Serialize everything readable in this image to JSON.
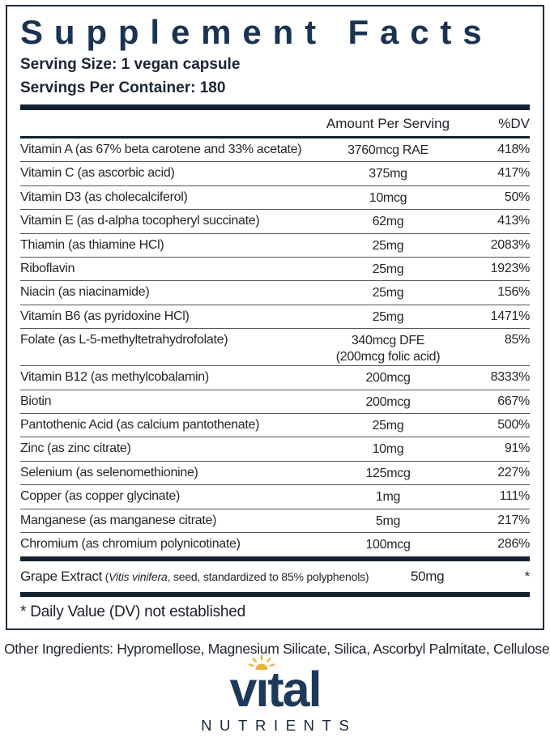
{
  "panel": {
    "title": "Supplement Facts",
    "serving_size": "Serving Size: 1 vegan capsule",
    "servings_per_container": "Servings Per Container: 180",
    "columns": {
      "amount": "Amount Per Serving",
      "dv": "%DV"
    },
    "rows": [
      {
        "name": "Vitamin A (as 67% beta carotene and 33% acetate)",
        "amount": "3760mcg RAE",
        "dv": "418%"
      },
      {
        "name": "Vitamin C (as ascorbic acid)",
        "amount": "375mg",
        "dv": "417%"
      },
      {
        "name": "Vitamin D3 (as cholecalciferol)",
        "amount": "10mcg",
        "dv": "50%"
      },
      {
        "name": "Vitamin E (as d-alpha tocopheryl succinate)",
        "amount": "62mg",
        "dv": "413%"
      },
      {
        "name": "Thiamin (as thiamine HCl)",
        "amount": "25mg",
        "dv": "2083%"
      },
      {
        "name": "Riboflavin",
        "amount": "25mg",
        "dv": "1923%"
      },
      {
        "name": "Niacin (as niacinamide)",
        "amount": "25mg",
        "dv": "156%"
      },
      {
        "name": "Vitamin B6 (as pyridoxine HCl)",
        "amount": "25mg",
        "dv": "1471%"
      },
      {
        "name": "Folate (as L-5-methyltetrahydrofolate)",
        "amount": "340mcg DFE",
        "amount2": "(200mcg folic acid)",
        "dv": "85%"
      },
      {
        "name": "Vitamin B12 (as methylcobalamin)",
        "amount": "200mcg",
        "dv": "8333%"
      },
      {
        "name": "Biotin",
        "amount": "200mcg",
        "dv": "667%"
      },
      {
        "name": "Pantothenic Acid (as calcium pantothenate)",
        "amount": "25mg",
        "dv": "500%"
      },
      {
        "name": "Zinc (as zinc citrate)",
        "amount": "10mg",
        "dv": "91%"
      },
      {
        "name": "Selenium (as selenomethionine)",
        "amount": "125mcg",
        "dv": "227%"
      },
      {
        "name": "Copper (as copper glycinate)",
        "amount": "1mg",
        "dv": "111%"
      },
      {
        "name": "Manganese (as manganese citrate)",
        "amount": "5mg",
        "dv": "217%"
      },
      {
        "name": "Chromium (as chromium polynicotinate)",
        "amount": "100mcg",
        "dv": "286%"
      }
    ],
    "grape_row": {
      "name_main": "Grape Extract",
      "paren_open": " (",
      "latin": "Vitis vinifera",
      "detail_rest": ", seed, standardized to 85% polyphenols)",
      "amount": "50mg",
      "dv": "*"
    },
    "footnote": "* Daily Value (DV) not established"
  },
  "other_ingredients": "Other Ingredients: Hypromellose, Magnesium Silicate, Silica, Ascorbyl Palmitate, Cellulose.",
  "logo": {
    "brand_part1": "v",
    "brand_dotless_i": "ı",
    "brand_part2": "tal",
    "subtitle": "NUTRIENTS",
    "sun_icon": "sun-icon"
  },
  "colors": {
    "navy_title": "#1b3353",
    "logo_navy": "#1d3a5a",
    "bar_dark": "#14222f",
    "body_text": "#26272c",
    "sun_gold": "#edb233"
  }
}
